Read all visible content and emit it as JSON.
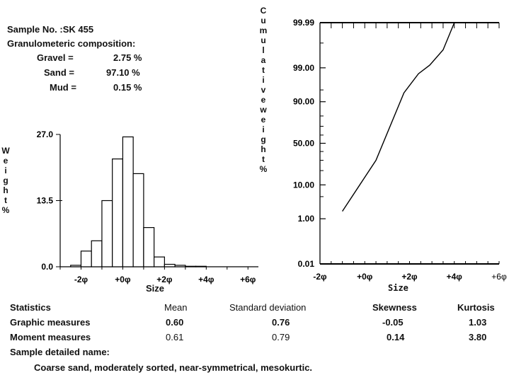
{
  "sample": {
    "label": "Sample No. :SK 455",
    "granulometric_label": "Granulometeric  composition:",
    "gravel_label": "Gravel =",
    "gravel_value": "2.75 %",
    "sand_label": "Sand =",
    "sand_value": "97.10 %",
    "mud_label": "Mud =",
    "mud_value": "0.15 %"
  },
  "chart_data": [
    {
      "type": "bar",
      "ylabel": "Weight %",
      "xlabel": "Size",
      "ylim": [
        0,
        27.0
      ],
      "yticks": [
        "0.0",
        "13.5",
        "27.0"
      ],
      "xticks": [
        "-2φ",
        "+0φ",
        "+2φ",
        "+4φ",
        "+6φ"
      ],
      "xlim": [
        -3,
        6.5
      ],
      "bin_width": 0.5,
      "bins_start": [
        -2.5,
        -2.0,
        -1.5,
        -1.0,
        -0.5,
        0.0,
        0.5,
        1.0,
        1.5,
        2.0,
        2.5,
        3.0,
        3.5,
        4.0
      ],
      "values": [
        0.3,
        3.2,
        5.3,
        13.5,
        22.0,
        26.5,
        19.0,
        8.0,
        2.0,
        0.5,
        0.3,
        0.1,
        0.1,
        0.0
      ]
    },
    {
      "type": "line",
      "ylabel": "Cumulative weight %",
      "xlabel": "Size",
      "scale": "probability",
      "yticks": [
        "0.01",
        "1.00",
        "10.00",
        "50.00",
        "90.00",
        "99.00",
        "99.99"
      ],
      "xticks": [
        "-2φ",
        "+0φ",
        "+2φ",
        "+4φ",
        "+6φ"
      ],
      "xlim": [
        -2,
        6
      ],
      "x": [
        -1.0,
        0.5,
        1.75,
        2.4,
        2.9,
        3.5,
        4.0
      ],
      "y": [
        1.8,
        30.0,
        94.0,
        98.4,
        99.2,
        99.8,
        99.99
      ]
    }
  ],
  "statistics": {
    "headers": [
      "Statistics",
      "Mean",
      "Standard deviation",
      "Skewness",
      "Kurtosis"
    ],
    "rows": [
      {
        "label": "Graphic  measures",
        "mean": "0.60",
        "sd": "0.76",
        "skew": "-0.05",
        "kurt": "1.03"
      },
      {
        "label": "Moment measures",
        "mean": "0.61",
        "sd": "0.79",
        "skew": "0.14",
        "kurt": "3.80"
      }
    ],
    "detail_label": "Sample detailed name:",
    "detail_text": "Coarse sand, moderately sorted, near-symmetrical, mesokurtic."
  }
}
